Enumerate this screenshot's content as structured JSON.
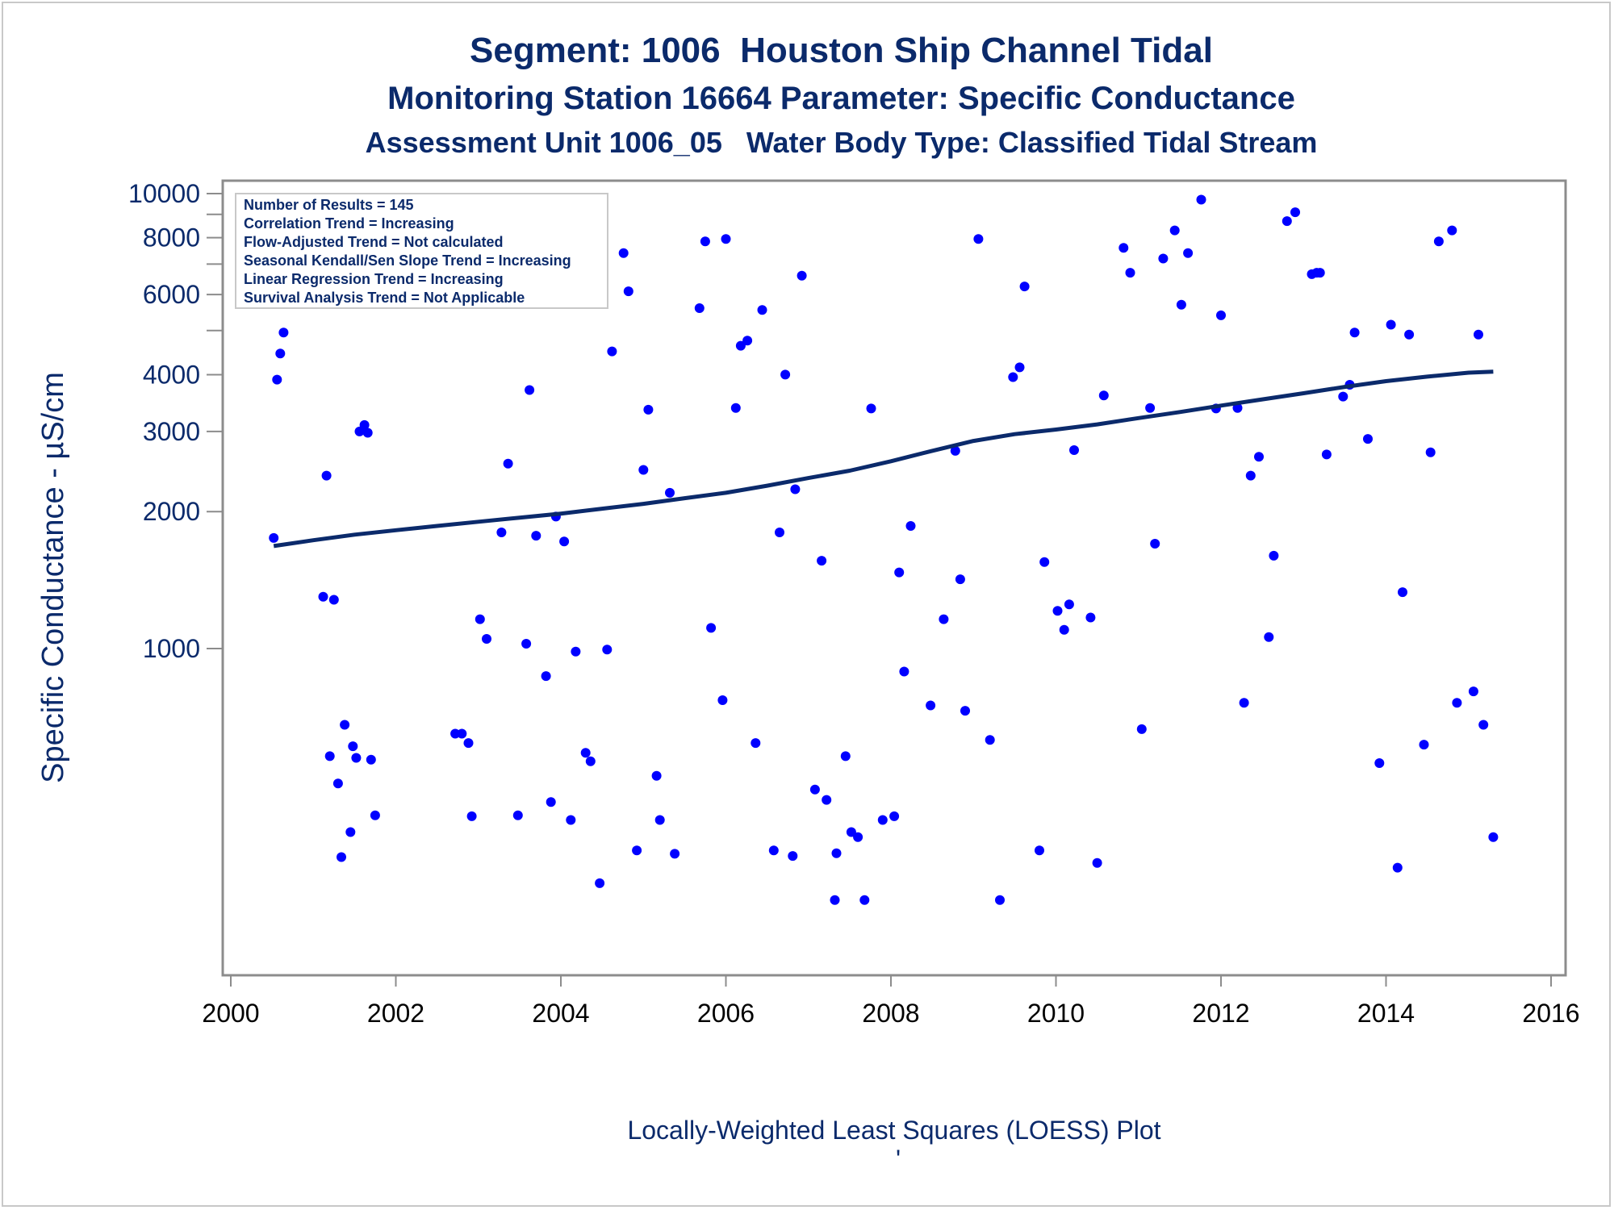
{
  "titles": {
    "line1": "Segment: 1006  Houston Ship Channel Tidal",
    "line2": "Monitoring Station 16664 Parameter: Specific Conductance",
    "line3": "Assessment Unit 1006_05   Water Body Type: Classified Tidal Stream"
  },
  "colors": {
    "text": "#0b2a6b",
    "points": "#0000ff",
    "trend": "#0b2a6b",
    "axis": "#8c8c8c"
  },
  "legend": [
    "Number of Results = 145",
    "Correlation Trend = Increasing",
    "Flow-Adjusted Trend = Not calculated",
    "Seasonal Kendall/Sen Slope Trend = Increasing",
    "Linear Regression Trend = Increasing",
    "Survival Analysis Trend = Not Applicable"
  ],
  "footnote": "Locally-Weighted Least Squares (LOESS) Plot",
  "footnote_mark": "'",
  "chart_data": {
    "type": "scatter",
    "title": "Segment: 1006  Houston Ship Channel Tidal",
    "ylabel": "Specific Conductance -  µS/cm",
    "xlabel": "",
    "x_ticks": [
      "2000",
      "2002",
      "2004",
      "2006",
      "2008",
      "2010",
      "2012",
      "2014",
      "2016"
    ],
    "y_ticks": [
      "1000",
      "2000",
      "3000",
      "4000",
      "6000",
      "8000",
      "10000"
    ],
    "y_scale": "log",
    "xlim": [
      2000,
      2016
    ],
    "ylim": [
      220,
      11000
    ],
    "grid": false,
    "legend_position": "top-left inset",
    "series": [
      {
        "kind": "points",
        "points": [
          [
            2000.52,
            1750
          ],
          [
            2000.56,
            3900
          ],
          [
            2000.6,
            4450
          ],
          [
            2000.64,
            4950
          ],
          [
            2000.68,
            6950
          ],
          [
            2001.12,
            1300
          ],
          [
            2001.16,
            2400
          ],
          [
            2001.2,
            580
          ],
          [
            2001.25,
            1280
          ],
          [
            2001.3,
            505
          ],
          [
            2001.34,
            348
          ],
          [
            2001.38,
            680
          ],
          [
            2001.45,
            395
          ],
          [
            2001.48,
            610
          ],
          [
            2001.52,
            575
          ],
          [
            2001.56,
            3000
          ],
          [
            2001.62,
            3100
          ],
          [
            2001.66,
            2980
          ],
          [
            2001.7,
            570
          ],
          [
            2001.75,
            430
          ],
          [
            2002.72,
            650
          ],
          [
            2002.8,
            650
          ],
          [
            2002.88,
            620
          ],
          [
            2002.92,
            428
          ],
          [
            2003.02,
            1160
          ],
          [
            2003.1,
            1050
          ],
          [
            2003.28,
            1800
          ],
          [
            2003.36,
            2550
          ],
          [
            2003.48,
            430
          ],
          [
            2003.58,
            1025
          ],
          [
            2003.62,
            3700
          ],
          [
            2003.7,
            1770
          ],
          [
            2003.82,
            870
          ],
          [
            2003.88,
            460
          ],
          [
            2003.94,
            1950
          ],
          [
            2004.04,
            1720
          ],
          [
            2004.12,
            420
          ],
          [
            2004.18,
            985
          ],
          [
            2004.3,
            590
          ],
          [
            2004.36,
            565
          ],
          [
            2004.47,
            305
          ],
          [
            2004.56,
            995
          ],
          [
            2004.62,
            4500
          ],
          [
            2004.76,
            7400
          ],
          [
            2004.82,
            6100
          ],
          [
            2004.92,
            360
          ],
          [
            2005.0,
            2470
          ],
          [
            2005.06,
            3350
          ],
          [
            2005.16,
            525
          ],
          [
            2005.2,
            420
          ],
          [
            2005.32,
            2200
          ],
          [
            2005.38,
            354
          ],
          [
            2005.68,
            5600
          ],
          [
            2005.75,
            7850
          ],
          [
            2005.82,
            1110
          ],
          [
            2005.96,
            770
          ],
          [
            2006.0,
            7950
          ],
          [
            2006.12,
            3380
          ],
          [
            2006.18,
            4630
          ],
          [
            2006.26,
            4750
          ],
          [
            2006.36,
            620
          ],
          [
            2006.44,
            5550
          ],
          [
            2006.58,
            360
          ],
          [
            2006.65,
            1800
          ],
          [
            2006.72,
            4000
          ],
          [
            2006.81,
            350
          ],
          [
            2006.84,
            2240
          ],
          [
            2006.92,
            6600
          ],
          [
            2007.08,
            490
          ],
          [
            2007.16,
            1560
          ],
          [
            2007.22,
            465
          ],
          [
            2007.32,
            280
          ],
          [
            2007.34,
            355
          ],
          [
            2007.45,
            580
          ],
          [
            2007.52,
            395
          ],
          [
            2007.6,
            385
          ],
          [
            2007.68,
            280
          ],
          [
            2007.76,
            3370
          ],
          [
            2007.9,
            420
          ],
          [
            2008.04,
            428
          ],
          [
            2008.1,
            1470
          ],
          [
            2008.16,
            890
          ],
          [
            2008.24,
            1860
          ],
          [
            2008.48,
            750
          ],
          [
            2008.64,
            1160
          ],
          [
            2008.78,
            2720
          ],
          [
            2008.84,
            1420
          ],
          [
            2008.9,
            730
          ],
          [
            2009.06,
            7950
          ],
          [
            2009.2,
            630
          ],
          [
            2009.32,
            280
          ],
          [
            2009.48,
            3950
          ],
          [
            2009.56,
            4150
          ],
          [
            2009.62,
            6250
          ],
          [
            2009.8,
            360
          ],
          [
            2009.86,
            1550
          ],
          [
            2010.02,
            1210
          ],
          [
            2010.1,
            1100
          ],
          [
            2010.16,
            1250
          ],
          [
            2010.22,
            2730
          ],
          [
            2010.42,
            1170
          ],
          [
            2010.5,
            338
          ],
          [
            2010.58,
            3600
          ],
          [
            2010.82,
            7600
          ],
          [
            2010.9,
            6700
          ],
          [
            2011.04,
            665
          ],
          [
            2011.14,
            3380
          ],
          [
            2011.2,
            1700
          ],
          [
            2011.3,
            7200
          ],
          [
            2011.44,
            8300
          ],
          [
            2011.52,
            5700
          ],
          [
            2011.6,
            7400
          ],
          [
            2011.76,
            9700
          ],
          [
            2011.94,
            3370
          ],
          [
            2012.0,
            5400
          ],
          [
            2012.2,
            3380
          ],
          [
            2012.28,
            760
          ],
          [
            2012.36,
            2400
          ],
          [
            2012.46,
            2640
          ],
          [
            2012.58,
            1060
          ],
          [
            2012.64,
            1600
          ],
          [
            2012.8,
            8700
          ],
          [
            2012.9,
            9100
          ],
          [
            2013.1,
            6650
          ],
          [
            2013.16,
            6700
          ],
          [
            2013.2,
            6700
          ],
          [
            2013.28,
            2670
          ],
          [
            2013.48,
            3580
          ],
          [
            2013.56,
            3800
          ],
          [
            2013.62,
            4950
          ],
          [
            2013.78,
            2890
          ],
          [
            2013.92,
            560
          ],
          [
            2014.06,
            5150
          ],
          [
            2014.14,
            330
          ],
          [
            2014.2,
            1330
          ],
          [
            2014.28,
            4900
          ],
          [
            2014.46,
            615
          ],
          [
            2014.54,
            2700
          ],
          [
            2014.64,
            7850
          ],
          [
            2014.8,
            8300
          ],
          [
            2014.86,
            760
          ],
          [
            2015.06,
            805
          ],
          [
            2015.12,
            4900
          ],
          [
            2015.18,
            680
          ],
          [
            2015.3,
            385
          ]
        ]
      },
      {
        "kind": "loess",
        "points": [
          [
            2000.52,
            1680
          ],
          [
            2001.0,
            1730
          ],
          [
            2001.5,
            1780
          ],
          [
            2002.0,
            1820
          ],
          [
            2002.5,
            1860
          ],
          [
            2003.0,
            1900
          ],
          [
            2003.5,
            1940
          ],
          [
            2004.0,
            1980
          ],
          [
            2004.5,
            2030
          ],
          [
            2005.0,
            2080
          ],
          [
            2005.5,
            2140
          ],
          [
            2006.0,
            2200
          ],
          [
            2006.5,
            2280
          ],
          [
            2007.0,
            2370
          ],
          [
            2007.5,
            2460
          ],
          [
            2008.0,
            2580
          ],
          [
            2008.5,
            2720
          ],
          [
            2009.0,
            2860
          ],
          [
            2009.5,
            2960
          ],
          [
            2010.0,
            3030
          ],
          [
            2010.5,
            3110
          ],
          [
            2011.0,
            3210
          ],
          [
            2011.5,
            3310
          ],
          [
            2012.0,
            3420
          ],
          [
            2012.5,
            3530
          ],
          [
            2013.0,
            3640
          ],
          [
            2013.5,
            3760
          ],
          [
            2014.0,
            3870
          ],
          [
            2014.5,
            3960
          ],
          [
            2015.0,
            4040
          ],
          [
            2015.3,
            4060
          ]
        ]
      }
    ]
  }
}
